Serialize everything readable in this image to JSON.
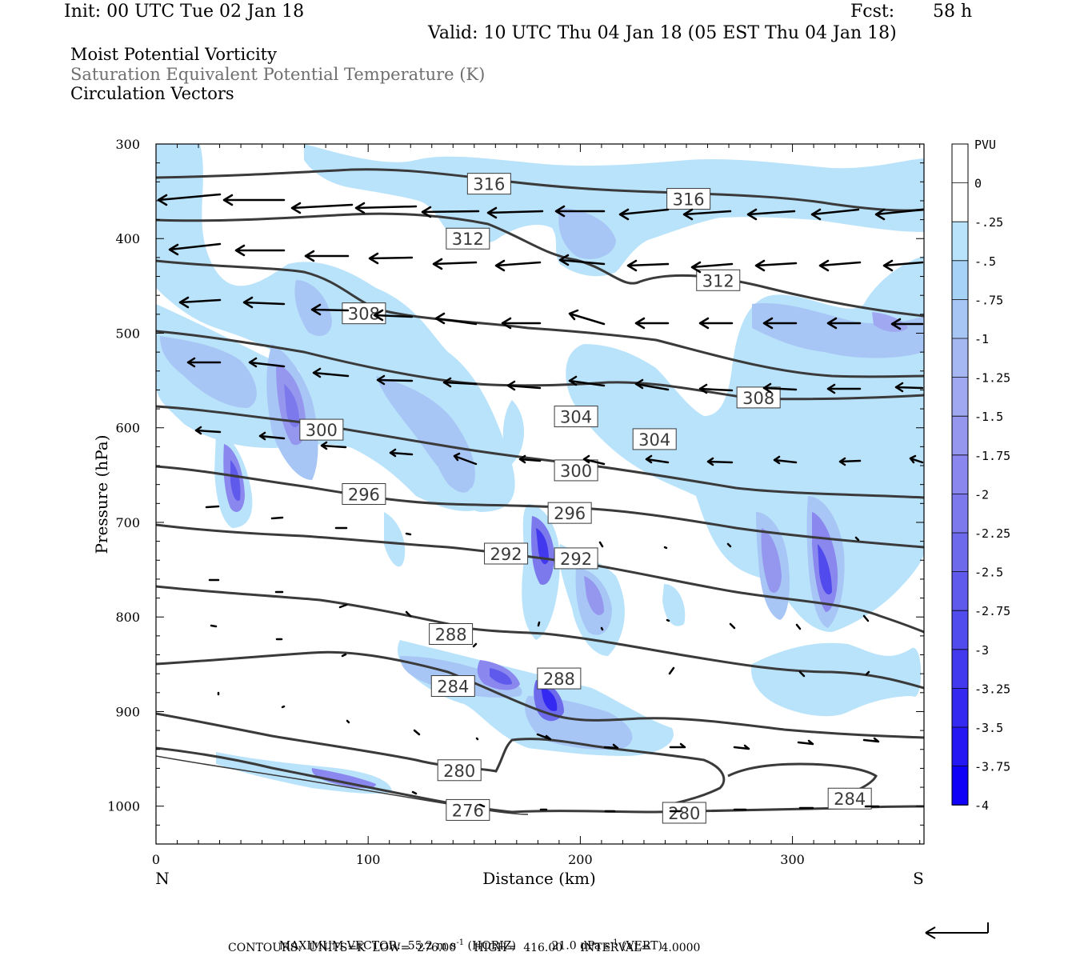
{
  "header": {
    "init": "Init: 00 UTC Tue 02 Jan 18",
    "fcst_label": "Fcst:",
    "fcst_value": "58 h",
    "valid": "Valid: 10 UTC Thu 04 Jan 18 (05 EST Thu 04 Jan 18)"
  },
  "fields": {
    "line1": "Moist Potential Vorticity",
    "line2": "Saturation Equivalent Potential Temperature (K)",
    "line3": "Circulation Vectors"
  },
  "footer": {
    "max_vector_label": "MAXIMUM VECTOR:",
    "horiz_value": "55.2 m s",
    "horiz_unit_tail": "(HORIZ)",
    "vert_value": "21.0 dPa s",
    "vert_unit_tail": "(VERT)",
    "exp": "-1",
    "contours": "CONTOURS:  UNITS=K  LOW=  276.00     HIGH=  416.00     INTERVAL=   4.0000"
  },
  "chart_data": {
    "type": "heatmap",
    "xlabel": "Distance (km)",
    "ylabel": "Pressure (hPa)",
    "xlim": [
      0,
      362
    ],
    "ylim": [
      1040,
      300
    ],
    "x_ticks": [
      0,
      100,
      200,
      300
    ],
    "y_ticks": [
      300,
      400,
      500,
      600,
      700,
      800,
      900,
      1000
    ],
    "end_labels": {
      "left": "N",
      "right": "S"
    },
    "colorbar": {
      "unit": "PVU",
      "labels": [
        "0",
        "-.25",
        "-.5",
        "-.75",
        "-1",
        "-1.25",
        "-1.5",
        "-1.75",
        "-2",
        "-2.25",
        "-2.5",
        "-2.75",
        "-3",
        "-3.25",
        "-3.5",
        "-3.75",
        "-4"
      ],
      "colors": [
        "#ffffff",
        "#ffffff",
        "#b9e3fb",
        "#a7d2f8",
        "#a8c6f5",
        "#a6b8f2",
        "#9fa8f0",
        "#9597ef",
        "#8a87ee",
        "#7c79ed",
        "#6d6aec",
        "#5f5aec",
        "#514aec",
        "#4239ee",
        "#3429f0",
        "#2417f4",
        "#1000f8"
      ]
    },
    "contour_labels": [
      {
        "text": "316",
        "x": 157,
        "p": 342
      },
      {
        "text": "316",
        "x": 251,
        "p": 358
      },
      {
        "text": "312",
        "x": 147,
        "p": 400
      },
      {
        "text": "312",
        "x": 265,
        "p": 444
      },
      {
        "text": "308",
        "x": 98,
        "p": 479
      },
      {
        "text": "308",
        "x": 284,
        "p": 568
      },
      {
        "text": "304",
        "x": 198,
        "p": 588
      },
      {
        "text": "304",
        "x": 235,
        "p": 612
      },
      {
        "text": "300",
        "x": 78,
        "p": 602
      },
      {
        "text": "300",
        "x": 198,
        "p": 645
      },
      {
        "text": "296",
        "x": 98,
        "p": 670
      },
      {
        "text": "296",
        "x": 195,
        "p": 690
      },
      {
        "text": "292",
        "x": 165,
        "p": 733
      },
      {
        "text": "292",
        "x": 198,
        "p": 738
      },
      {
        "text": "288",
        "x": 139,
        "p": 818
      },
      {
        "text": "288",
        "x": 190,
        "p": 865
      },
      {
        "text": "284",
        "x": 140,
        "p": 873
      },
      {
        "text": "284",
        "x": 327,
        "p": 992
      },
      {
        "text": "280",
        "x": 143,
        "p": 962
      },
      {
        "text": "280",
        "x": 249,
        "p": 1007
      },
      {
        "text": "276",
        "x": 147,
        "p": 1004
      }
    ]
  },
  "colors": {
    "contour": "#3a3a3a",
    "frame": "#000000"
  }
}
